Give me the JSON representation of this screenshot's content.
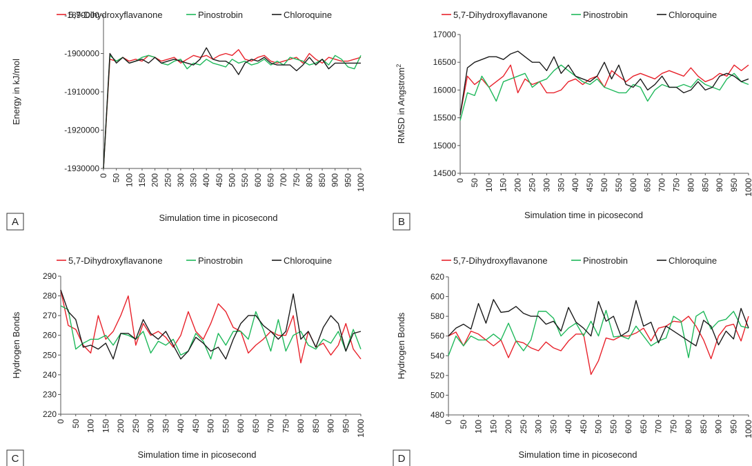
{
  "colors": {
    "red": "#e8212a",
    "green": "#1eb85a",
    "black": "#1a1a1a"
  },
  "chart_data": [
    {
      "panel": "A",
      "type": "line",
      "title": "",
      "xlabel": "Simulation time in picosecond",
      "ylabel": "Energy in kJ/mol",
      "ylim": [
        -1930000,
        -1890000
      ],
      "yticks": [
        -1930000,
        -1920000,
        -1910000,
        -1900000,
        -1890000
      ],
      "ytick_labels": [
        "-1930000",
        "-1920000",
        "-1910000",
        "-1900000",
        "-1890000"
      ],
      "legend": "top",
      "grid": false,
      "categories": [
        "0",
        "50",
        "100",
        "150",
        "200",
        "250",
        "300",
        "350",
        "400",
        "450",
        "500",
        "550",
        "600",
        "650",
        "700",
        "750",
        "800",
        "850",
        "900",
        "950",
        "1000"
      ],
      "x": [
        0,
        25,
        50,
        75,
        100,
        125,
        150,
        175,
        200,
        225,
        250,
        275,
        300,
        325,
        350,
        375,
        400,
        425,
        450,
        475,
        500,
        525,
        550,
        575,
        600,
        625,
        650,
        675,
        700,
        725,
        750,
        775,
        800,
        825,
        850,
        875,
        900,
        925,
        950,
        975,
        1000
      ],
      "series": [
        {
          "name": "5,7-Dihydroxyflavanone",
          "color": "#e8212a",
          "values": [
            -1930000,
            -1901500,
            -1902000,
            -1901000,
            -1902000,
            -1901500,
            -1902000,
            -1900500,
            -1901000,
            -1902000,
            -1901500,
            -1901000,
            -1902500,
            -1901500,
            -1900500,
            -1901000,
            -1900500,
            -1901500,
            -1900500,
            -1900000,
            -1900500,
            -1899000,
            -1901500,
            -1902000,
            -1901000,
            -1900500,
            -1902000,
            -1902500,
            -1902000,
            -1901500,
            -1901000,
            -1902500,
            -1900000,
            -1901500,
            -1902500,
            -1901000,
            -1901500,
            -1902000,
            -1902000,
            -1901500,
            -1901000
          ]
        },
        {
          "name": "Pinostrobin",
          "color": "#1eb85a",
          "values": [
            -1930000,
            -1900500,
            -1902000,
            -1901000,
            -1902500,
            -1902000,
            -1901000,
            -1900500,
            -1901000,
            -1902500,
            -1903000,
            -1902000,
            -1901500,
            -1904000,
            -1902500,
            -1903000,
            -1901500,
            -1902500,
            -1903000,
            -1903500,
            -1901500,
            -1902500,
            -1902000,
            -1903000,
            -1902500,
            -1901500,
            -1903000,
            -1902000,
            -1903000,
            -1901000,
            -1901500,
            -1902000,
            -1903000,
            -1902500,
            -1901500,
            -1903000,
            -1900500,
            -1901500,
            -1903500,
            -1904000,
            -1900500
          ]
        },
        {
          "name": "Chloroquine",
          "color": "#1a1a1a",
          "values": [
            -1930000,
            -1900000,
            -1902500,
            -1901000,
            -1902500,
            -1902000,
            -1901500,
            -1902500,
            -1901000,
            -1902500,
            -1902000,
            -1901500,
            -1902000,
            -1902500,
            -1903000,
            -1901500,
            -1898500,
            -1901500,
            -1902000,
            -1902000,
            -1903000,
            -1905500,
            -1902500,
            -1901500,
            -1902000,
            -1901000,
            -1902500,
            -1903000,
            -1903000,
            -1903000,
            -1904500,
            -1903000,
            -1901000,
            -1903000,
            -1901500,
            -1904000,
            -1902500,
            -1902500,
            -1902500,
            -1902500,
            -1902500
          ]
        }
      ]
    },
    {
      "panel": "B",
      "type": "line",
      "title": "",
      "xlabel": "Simulation time in picosecond",
      "ylabel": "RMSD in Angstrom",
      "ylabel_superscript": "2",
      "ylim": [
        14500,
        17000
      ],
      "yticks": [
        14500,
        15000,
        15500,
        16000,
        16500,
        17000
      ],
      "ytick_labels": [
        "14500",
        "15000",
        "15500",
        "16000",
        "16500",
        "17000"
      ],
      "legend": "top",
      "grid": false,
      "categories": [
        "0",
        "50",
        "100",
        "150",
        "200",
        "250",
        "300",
        "350",
        "400",
        "450",
        "500",
        "550",
        "600",
        "650",
        "700",
        "750",
        "800",
        "850",
        "900",
        "950",
        "1000"
      ],
      "x": [
        0,
        25,
        50,
        75,
        100,
        125,
        150,
        175,
        200,
        225,
        250,
        275,
        300,
        325,
        350,
        375,
        400,
        425,
        450,
        475,
        500,
        525,
        550,
        575,
        600,
        625,
        650,
        675,
        700,
        725,
        750,
        775,
        800,
        825,
        850,
        875,
        900,
        925,
        950,
        975,
        1000
      ],
      "series": [
        {
          "name": "5,7-Dihydroxyflavanone",
          "color": "#e8212a",
          "values": [
            15550,
            16250,
            16100,
            16200,
            16050,
            16150,
            16250,
            16450,
            15950,
            16200,
            16100,
            16150,
            15950,
            15950,
            16000,
            16150,
            16200,
            16100,
            16200,
            16250,
            16050,
            16350,
            16250,
            16150,
            16250,
            16300,
            16250,
            16200,
            16300,
            16350,
            16300,
            16250,
            16400,
            16250,
            16150,
            16200,
            16300,
            16250,
            16450,
            16350,
            16450
          ]
        },
        {
          "name": "Pinostrobin",
          "color": "#1eb85a",
          "values": [
            15450,
            15950,
            15900,
            16250,
            16050,
            15800,
            16150,
            16200,
            16250,
            16300,
            16050,
            16150,
            16200,
            16350,
            16450,
            16350,
            16250,
            16150,
            16100,
            16200,
            16050,
            16000,
            15950,
            15950,
            16100,
            16050,
            15800,
            16000,
            16100,
            16050,
            16050,
            16100,
            16050,
            16200,
            16100,
            16050,
            16000,
            16200,
            16300,
            16150,
            16100
          ]
        },
        {
          "name": "Chloroquine",
          "color": "#1a1a1a",
          "values": [
            15550,
            16400,
            16500,
            16550,
            16600,
            16600,
            16550,
            16650,
            16700,
            16600,
            16500,
            16500,
            16350,
            16600,
            16300,
            16450,
            16250,
            16200,
            16150,
            16250,
            16500,
            16200,
            16450,
            16100,
            16050,
            16200,
            16000,
            16100,
            16250,
            16050,
            16050,
            15950,
            16000,
            16150,
            16000,
            16050,
            16250,
            16300,
            16250,
            16150,
            16200
          ]
        }
      ]
    },
    {
      "panel": "C",
      "type": "line",
      "title": "",
      "xlabel": "Simulation time in picosecond",
      "ylabel": "Hydrogen Bonds",
      "ylim": [
        220,
        290
      ],
      "yticks": [
        220,
        230,
        240,
        250,
        260,
        270,
        280,
        290
      ],
      "ytick_labels": [
        "220",
        "230",
        "240",
        "250",
        "260",
        "270",
        "280",
        "290"
      ],
      "legend": "top",
      "grid": false,
      "categories": [
        "0",
        "50",
        "100",
        "150",
        "200",
        "250",
        "300",
        "350",
        "400",
        "450",
        "500",
        "550",
        "600",
        "650",
        "700",
        "750",
        "800",
        "850",
        "900",
        "950",
        "1000"
      ],
      "x": [
        0,
        25,
        50,
        75,
        100,
        125,
        150,
        175,
        200,
        225,
        250,
        275,
        300,
        325,
        350,
        375,
        400,
        425,
        450,
        475,
        500,
        525,
        550,
        575,
        600,
        625,
        650,
        675,
        700,
        725,
        750,
        775,
        800,
        825,
        850,
        875,
        900,
        925,
        950,
        975,
        1000
      ],
      "series": [
        {
          "name": "5,7-Dihydroxyflavanone",
          "color": "#e8212a",
          "values": [
            283,
            265,
            263,
            255,
            251,
            270,
            258,
            262,
            270,
            280,
            255,
            266,
            260,
            262,
            259,
            254,
            260,
            272,
            262,
            258,
            266,
            276,
            272,
            264,
            262,
            251,
            255,
            258,
            262,
            260,
            260,
            270,
            246,
            262,
            254,
            256,
            250,
            255,
            266,
            253,
            248
          ]
        },
        {
          "name": "Pinostrobin",
          "color": "#1eb85a",
          "values": [
            275,
            273,
            253,
            256,
            258,
            258,
            260,
            255,
            261,
            260,
            258,
            262,
            251,
            257,
            255,
            258,
            250,
            252,
            261,
            257,
            248,
            261,
            255,
            262,
            262,
            258,
            272,
            263,
            252,
            268,
            252,
            260,
            262,
            255,
            253,
            258,
            256,
            262,
            252,
            263,
            253
          ]
        },
        {
          "name": "Chloroquine",
          "color": "#1a1a1a",
          "values": [
            283,
            272,
            268,
            254,
            255,
            253,
            256,
            248,
            261,
            261,
            258,
            268,
            261,
            258,
            262,
            255,
            248,
            252,
            259,
            256,
            252,
            254,
            248,
            258,
            266,
            270,
            270,
            265,
            262,
            258,
            262,
            281,
            258,
            262,
            254,
            264,
            270,
            266,
            252,
            261,
            262
          ]
        }
      ]
    },
    {
      "panel": "D",
      "type": "line",
      "title": "",
      "xlabel": "Simulation time in picosecond",
      "ylabel": "Hydrogen Bonds",
      "ylim": [
        480,
        620
      ],
      "yticks": [
        480,
        500,
        520,
        540,
        560,
        580,
        600,
        620
      ],
      "ytick_labels": [
        "480",
        "500",
        "520",
        "540",
        "560",
        "580",
        "600",
        "620"
      ],
      "legend": "top",
      "grid": false,
      "categories": [
        "0",
        "50",
        "100",
        "150",
        "200",
        "250",
        "300",
        "350",
        "400",
        "450",
        "500",
        "550",
        "600",
        "650",
        "700",
        "750",
        "800",
        "850",
        "900",
        "950",
        "1000"
      ],
      "x": [
        0,
        25,
        50,
        75,
        100,
        125,
        150,
        175,
        200,
        225,
        250,
        275,
        300,
        325,
        350,
        375,
        400,
        425,
        450,
        475,
        500,
        525,
        550,
        575,
        600,
        625,
        650,
        675,
        700,
        725,
        750,
        775,
        800,
        825,
        850,
        875,
        900,
        925,
        950,
        975,
        1000
      ],
      "series": [
        {
          "name": "5,7-Dihydroxyflavanone",
          "color": "#e8212a",
          "values": [
            560,
            564,
            550,
            565,
            562,
            556,
            550,
            556,
            538,
            555,
            553,
            548,
            545,
            554,
            548,
            545,
            555,
            562,
            562,
            521,
            535,
            558,
            556,
            560,
            560,
            563,
            568,
            555,
            568,
            570,
            575,
            574,
            580,
            570,
            556,
            537,
            560,
            570,
            572,
            555,
            580
          ]
        },
        {
          "name": "Pinostrobin",
          "color": "#1eb85a",
          "values": [
            540,
            560,
            550,
            560,
            556,
            556,
            562,
            556,
            573,
            555,
            545,
            556,
            585,
            585,
            578,
            560,
            568,
            573,
            560,
            575,
            560,
            586,
            559,
            560,
            557,
            570,
            560,
            550,
            555,
            558,
            580,
            575,
            538,
            580,
            585,
            567,
            575,
            577,
            585,
            570,
            568
          ]
        },
        {
          "name": "Chloroquine",
          "color": "#1a1a1a",
          "values": [
            560,
            568,
            572,
            567,
            593,
            573,
            597,
            584,
            585,
            590,
            583,
            580,
            580,
            572,
            575,
            565,
            589,
            574,
            568,
            560,
            595,
            575,
            580,
            560,
            565,
            596,
            570,
            574,
            553,
            570,
            565,
            560,
            555,
            550,
            576,
            570,
            551,
            565,
            557,
            588,
            568
          ]
        }
      ]
    }
  ]
}
